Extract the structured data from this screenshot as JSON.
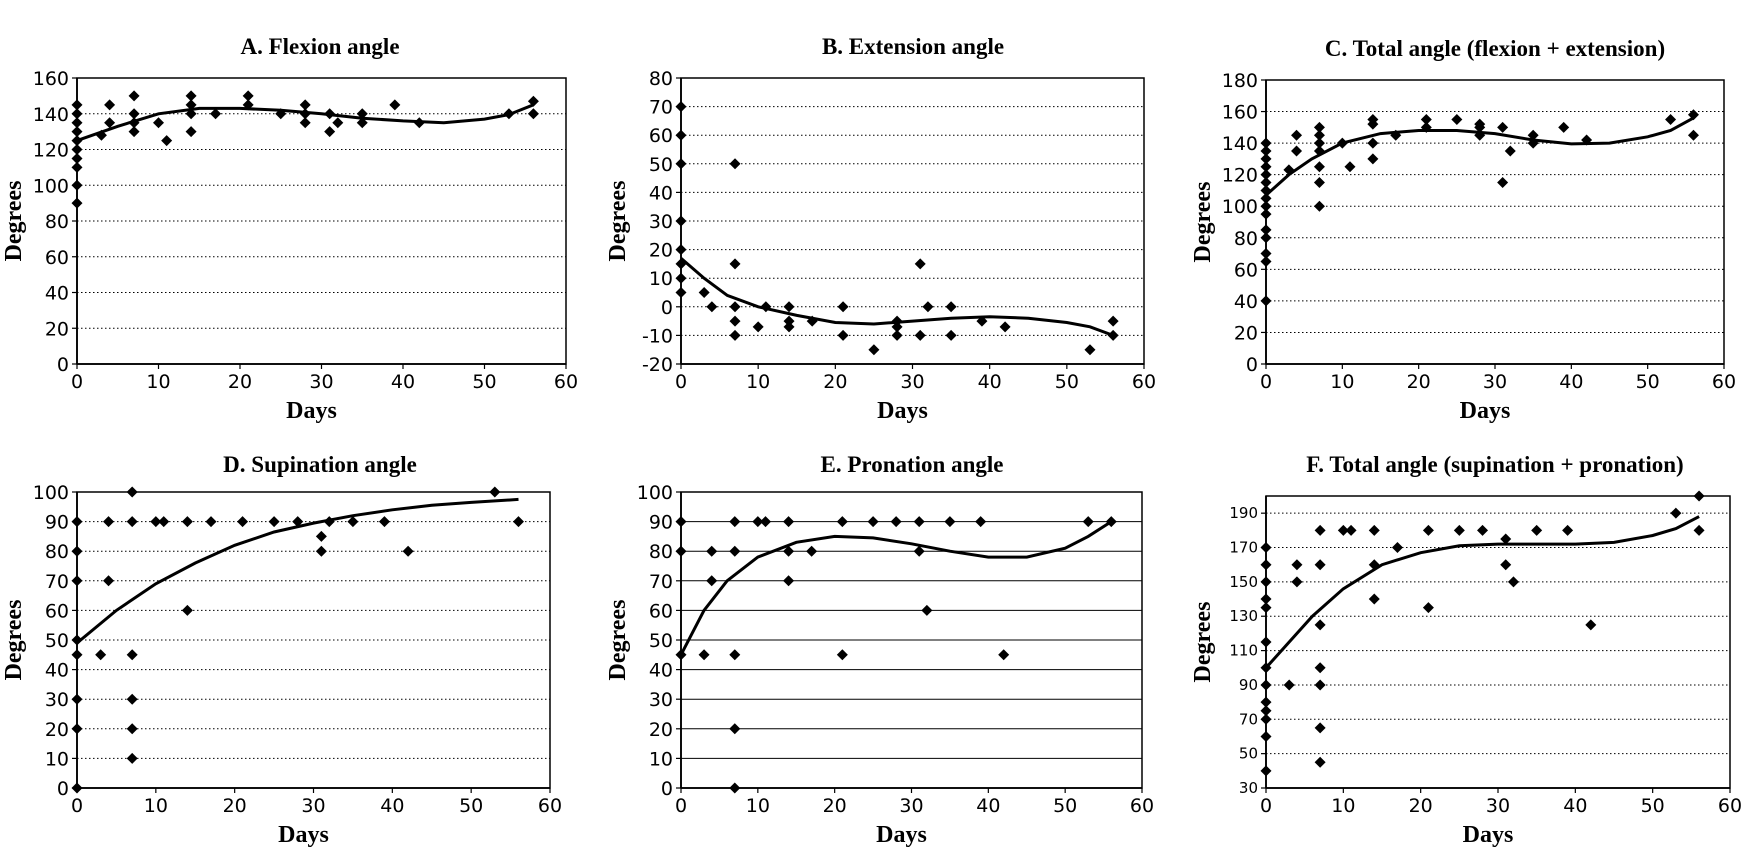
{
  "chart_data": [
    {
      "id": "A",
      "type": "scatter",
      "title": "A. Flexion angle",
      "xlabel": "Days",
      "ylabel": "Degrees",
      "xlim": [
        0,
        60
      ],
      "ylim": [
        0,
        160
      ],
      "xticks": [
        0,
        10,
        20,
        30,
        40,
        50,
        60
      ],
      "yticks": [
        0,
        20,
        40,
        60,
        80,
        100,
        120,
        140,
        160
      ],
      "grid": "dotted",
      "points": [
        [
          0,
          90
        ],
        [
          0,
          100
        ],
        [
          0,
          110
        ],
        [
          0,
          115
        ],
        [
          0,
          120
        ],
        [
          0,
          125
        ],
        [
          0,
          130
        ],
        [
          0,
          135
        ],
        [
          0,
          140
        ],
        [
          0,
          145
        ],
        [
          3,
          128
        ],
        [
          4,
          135
        ],
        [
          4,
          145
        ],
        [
          7,
          130
        ],
        [
          7,
          135
        ],
        [
          7,
          140
        ],
        [
          7,
          150
        ],
        [
          10,
          135
        ],
        [
          11,
          125
        ],
        [
          14,
          130
        ],
        [
          14,
          140
        ],
        [
          14,
          145
        ],
        [
          14,
          150
        ],
        [
          17,
          140
        ],
        [
          21,
          145
        ],
        [
          21,
          150
        ],
        [
          25,
          140
        ],
        [
          28,
          135
        ],
        [
          28,
          140
        ],
        [
          28,
          145
        ],
        [
          31,
          130
        ],
        [
          31,
          140
        ],
        [
          32,
          135
        ],
        [
          35,
          135
        ],
        [
          35,
          140
        ],
        [
          39,
          145
        ],
        [
          42,
          135
        ],
        [
          53,
          140
        ],
        [
          56,
          140
        ],
        [
          56,
          147
        ]
      ],
      "trend": [
        [
          0,
          125
        ],
        [
          5,
          133
        ],
        [
          10,
          140
        ],
        [
          15,
          143
        ],
        [
          20,
          143
        ],
        [
          25,
          142
        ],
        [
          30,
          140
        ],
        [
          35,
          137.5
        ],
        [
          40,
          136
        ],
        [
          45,
          135
        ],
        [
          50,
          137
        ],
        [
          53,
          139.5
        ],
        [
          56,
          145
        ]
      ]
    },
    {
      "id": "B",
      "type": "scatter",
      "title": "B. Extension angle",
      "xlabel": "Days",
      "ylabel": "Degrees",
      "xlim": [
        0,
        60
      ],
      "ylim": [
        -20,
        80
      ],
      "xticks": [
        0,
        10,
        20,
        30,
        40,
        50,
        60
      ],
      "yticks": [
        -20,
        -10,
        0,
        10,
        20,
        30,
        40,
        50,
        60,
        70,
        80
      ],
      "grid": "dotted",
      "points": [
        [
          0,
          70
        ],
        [
          0,
          60
        ],
        [
          0,
          50
        ],
        [
          0,
          30
        ],
        [
          0,
          20
        ],
        [
          0,
          15
        ],
        [
          0,
          10
        ],
        [
          0,
          5
        ],
        [
          3,
          5
        ],
        [
          4,
          0
        ],
        [
          7,
          50
        ],
        [
          7,
          15
        ],
        [
          7,
          0
        ],
        [
          7,
          -5
        ],
        [
          7,
          -10
        ],
        [
          10,
          -7
        ],
        [
          11,
          0
        ],
        [
          14,
          0
        ],
        [
          14,
          -5
        ],
        [
          14,
          -7
        ],
        [
          17,
          -5
        ],
        [
          21,
          0
        ],
        [
          21,
          -10
        ],
        [
          25,
          -15
        ],
        [
          28,
          -5
        ],
        [
          28,
          -7
        ],
        [
          28,
          -10
        ],
        [
          31,
          15
        ],
        [
          31,
          -10
        ],
        [
          32,
          0
        ],
        [
          35,
          0
        ],
        [
          35,
          -10
        ],
        [
          39,
          -5
        ],
        [
          42,
          -7
        ],
        [
          53,
          -15
        ],
        [
          56,
          -5
        ],
        [
          56,
          -10
        ]
      ],
      "trend": [
        [
          0,
          17
        ],
        [
          3,
          10
        ],
        [
          6,
          4
        ],
        [
          10,
          0
        ],
        [
          15,
          -3
        ],
        [
          20,
          -5.5
        ],
        [
          25,
          -6
        ],
        [
          30,
          -5
        ],
        [
          35,
          -4
        ],
        [
          40,
          -3.5
        ],
        [
          45,
          -4
        ],
        [
          50,
          -5.5
        ],
        [
          53,
          -7
        ],
        [
          56,
          -10
        ]
      ]
    },
    {
      "id": "C",
      "type": "scatter",
      "title": "C. Total angle (flexion + extension)",
      "xlabel": "Days",
      "ylabel": "Degrees",
      "xlim": [
        0,
        60
      ],
      "ylim": [
        0,
        180
      ],
      "xticks": [
        0,
        10,
        20,
        30,
        40,
        50,
        60
      ],
      "yticks": [
        0,
        20,
        40,
        60,
        80,
        100,
        120,
        140,
        160,
        180
      ],
      "grid": "dotted",
      "points": [
        [
          0,
          40
        ],
        [
          0,
          65
        ],
        [
          0,
          70
        ],
        [
          0,
          80
        ],
        [
          0,
          85
        ],
        [
          0,
          95
        ],
        [
          0,
          100
        ],
        [
          0,
          105
        ],
        [
          0,
          110
        ],
        [
          0,
          115
        ],
        [
          0,
          120
        ],
        [
          0,
          125
        ],
        [
          0,
          130
        ],
        [
          0,
          135
        ],
        [
          0,
          140
        ],
        [
          3,
          123
        ],
        [
          4,
          135
        ],
        [
          4,
          145
        ],
        [
          7,
          100
        ],
        [
          7,
          115
        ],
        [
          7,
          125
        ],
        [
          7,
          135
        ],
        [
          7,
          140
        ],
        [
          7,
          145
        ],
        [
          7,
          150
        ],
        [
          10,
          140
        ],
        [
          11,
          125
        ],
        [
          14,
          130
        ],
        [
          14,
          140
        ],
        [
          14,
          152
        ],
        [
          14,
          155
        ],
        [
          17,
          145
        ],
        [
          21,
          150
        ],
        [
          21,
          155
        ],
        [
          25,
          155
        ],
        [
          28,
          145
        ],
        [
          28,
          150
        ],
        [
          28,
          152
        ],
        [
          31,
          115
        ],
        [
          31,
          150
        ],
        [
          32,
          135
        ],
        [
          35,
          140
        ],
        [
          35,
          145
        ],
        [
          39,
          150
        ],
        [
          42,
          142
        ],
        [
          53,
          155
        ],
        [
          56,
          145
        ],
        [
          56,
          158
        ]
      ],
      "trend": [
        [
          0,
          107
        ],
        [
          3,
          120
        ],
        [
          6,
          130
        ],
        [
          10,
          140
        ],
        [
          15,
          146
        ],
        [
          20,
          148
        ],
        [
          25,
          148
        ],
        [
          30,
          146
        ],
        [
          35,
          142
        ],
        [
          40,
          139.5
        ],
        [
          45,
          140
        ],
        [
          50,
          144
        ],
        [
          53,
          148
        ],
        [
          56,
          156
        ]
      ]
    },
    {
      "id": "D",
      "type": "scatter",
      "title": "D. Supination angle",
      "xlabel": "Days",
      "ylabel": "Degrees",
      "xlim": [
        0,
        60
      ],
      "ylim": [
        0,
        100
      ],
      "xticks": [
        0,
        10,
        20,
        30,
        40,
        50,
        60
      ],
      "yticks": [
        0,
        10,
        20,
        30,
        40,
        50,
        60,
        70,
        80,
        90,
        100
      ],
      "grid": "dotted",
      "points": [
        [
          0,
          0
        ],
        [
          0,
          20
        ],
        [
          0,
          30
        ],
        [
          0,
          45
        ],
        [
          0,
          50
        ],
        [
          0,
          70
        ],
        [
          0,
          80
        ],
        [
          0,
          90
        ],
        [
          3,
          45
        ],
        [
          4,
          70
        ],
        [
          4,
          90
        ],
        [
          7,
          10
        ],
        [
          7,
          20
        ],
        [
          7,
          30
        ],
        [
          7,
          45
        ],
        [
          7,
          90
        ],
        [
          7,
          100
        ],
        [
          10,
          90
        ],
        [
          11,
          90
        ],
        [
          14,
          60
        ],
        [
          14,
          90
        ],
        [
          17,
          90
        ],
        [
          21,
          90
        ],
        [
          25,
          90
        ],
        [
          28,
          90
        ],
        [
          31,
          80
        ],
        [
          31,
          85
        ],
        [
          32,
          90
        ],
        [
          35,
          90
        ],
        [
          39,
          90
        ],
        [
          42,
          80
        ],
        [
          53,
          100
        ],
        [
          56,
          90
        ]
      ],
      "trend": [
        [
          0,
          49
        ],
        [
          5,
          60
        ],
        [
          10,
          69
        ],
        [
          15,
          76
        ],
        [
          20,
          82
        ],
        [
          25,
          86.5
        ],
        [
          30,
          89.5
        ],
        [
          35,
          92
        ],
        [
          40,
          94
        ],
        [
          45,
          95.5
        ],
        [
          50,
          96.5
        ],
        [
          56,
          97.5
        ]
      ]
    },
    {
      "id": "E",
      "type": "scatter",
      "title": "E. Pronation angle",
      "xlabel": "Days",
      "ylabel": "Degrees",
      "xlim": [
        0,
        60
      ],
      "ylim": [
        0,
        100
      ],
      "xticks": [
        0,
        10,
        20,
        30,
        40,
        50,
        60
      ],
      "yticks": [
        0,
        10,
        20,
        30,
        40,
        50,
        60,
        70,
        80,
        90,
        100
      ],
      "grid": "solid",
      "points": [
        [
          0,
          45
        ],
        [
          0,
          80
        ],
        [
          0,
          90
        ],
        [
          3,
          45
        ],
        [
          4,
          70
        ],
        [
          4,
          80
        ],
        [
          7,
          0
        ],
        [
          7,
          20
        ],
        [
          7,
          45
        ],
        [
          7,
          80
        ],
        [
          7,
          90
        ],
        [
          10,
          90
        ],
        [
          11,
          90
        ],
        [
          14,
          70
        ],
        [
          14,
          80
        ],
        [
          14,
          90
        ],
        [
          17,
          80
        ],
        [
          21,
          45
        ],
        [
          21,
          90
        ],
        [
          25,
          90
        ],
        [
          28,
          90
        ],
        [
          31,
          80
        ],
        [
          31,
          90
        ],
        [
          32,
          60
        ],
        [
          35,
          90
        ],
        [
          39,
          90
        ],
        [
          42,
          45
        ],
        [
          53,
          90
        ],
        [
          56,
          90
        ]
      ],
      "trend": [
        [
          0,
          45
        ],
        [
          3,
          60
        ],
        [
          6,
          70
        ],
        [
          10,
          78
        ],
        [
          15,
          83
        ],
        [
          20,
          85
        ],
        [
          25,
          84.5
        ],
        [
          30,
          82.5
        ],
        [
          35,
          80
        ],
        [
          40,
          78
        ],
        [
          45,
          78
        ],
        [
          50,
          81
        ],
        [
          53,
          85
        ],
        [
          56,
          90
        ]
      ]
    },
    {
      "id": "F",
      "type": "scatter",
      "title": "F. Total angle (supination + pronation)",
      "xlabel": "Days",
      "ylabel": "Degrees",
      "xlim": [
        0,
        60
      ],
      "ylim": [
        30,
        200
      ],
      "xticks": [
        0,
        10,
        20,
        30,
        40,
        50,
        60
      ],
      "yticks": [
        30,
        50,
        70,
        90,
        110,
        130,
        150,
        170,
        190
      ],
      "grid": "dotted",
      "points": [
        [
          0,
          40
        ],
        [
          0,
          60
        ],
        [
          0,
          70
        ],
        [
          0,
          75
        ],
        [
          0,
          80
        ],
        [
          0,
          90
        ],
        [
          0,
          100
        ],
        [
          0,
          115
        ],
        [
          0,
          135
        ],
        [
          0,
          140
        ],
        [
          0,
          150
        ],
        [
          0,
          160
        ],
        [
          0,
          170
        ],
        [
          3,
          90
        ],
        [
          4,
          150
        ],
        [
          4,
          160
        ],
        [
          7,
          45
        ],
        [
          7,
          65
        ],
        [
          7,
          90
        ],
        [
          7,
          100
        ],
        [
          7,
          125
        ],
        [
          7,
          160
        ],
        [
          7,
          180
        ],
        [
          10,
          180
        ],
        [
          11,
          180
        ],
        [
          14,
          140
        ],
        [
          14,
          160
        ],
        [
          14,
          180
        ],
        [
          17,
          170
        ],
        [
          21,
          135
        ],
        [
          21,
          180
        ],
        [
          25,
          180
        ],
        [
          28,
          180
        ],
        [
          31,
          160
        ],
        [
          31,
          175
        ],
        [
          32,
          150
        ],
        [
          35,
          180
        ],
        [
          39,
          180
        ],
        [
          42,
          125
        ],
        [
          53,
          190
        ],
        [
          56,
          180
        ],
        [
          56,
          200
        ]
      ],
      "trend": [
        [
          0,
          100
        ],
        [
          3,
          115
        ],
        [
          6,
          130
        ],
        [
          10,
          146
        ],
        [
          15,
          160
        ],
        [
          20,
          167
        ],
        [
          25,
          171
        ],
        [
          30,
          172
        ],
        [
          35,
          172
        ],
        [
          40,
          172
        ],
        [
          45,
          173
        ],
        [
          50,
          177
        ],
        [
          53,
          181
        ],
        [
          56,
          188
        ]
      ]
    }
  ]
}
